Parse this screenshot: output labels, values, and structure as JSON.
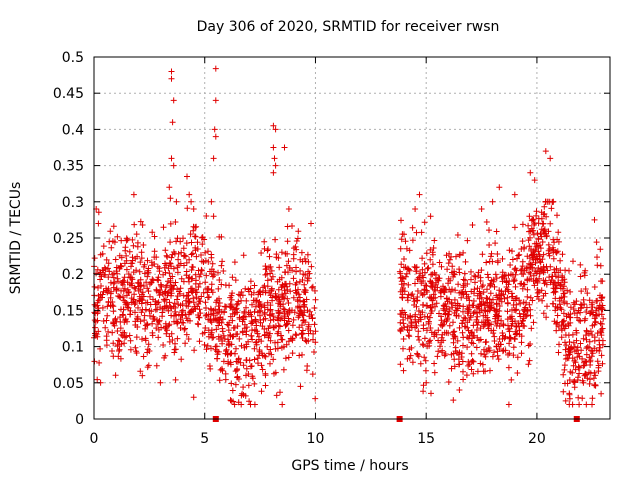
{
  "chart_data": {
    "type": "scatter",
    "title": "Day 306 of 2020, SRMTID for receiver rwsn",
    "xlabel": "GPS time / hours",
    "ylabel": "SRMTID / TECUs",
    "xlim": [
      0,
      23.3
    ],
    "ylim": [
      0,
      0.5
    ],
    "x_ticks": [
      0,
      5,
      10,
      15,
      20
    ],
    "x_tick_labels": [
      "0",
      "5",
      "10",
      "15",
      "20"
    ],
    "y_ticks": [
      0,
      0.05,
      0.1,
      0.15,
      0.2,
      0.25,
      0.3,
      0.35,
      0.4,
      0.45,
      0.5
    ],
    "y_tick_labels": [
      "0",
      "0.05",
      "0.1",
      "0.15",
      "0.2",
      "0.25",
      "0.3",
      "0.35",
      "0.4",
      "0.45",
      "0.5"
    ],
    "grid": true,
    "marker": "+",
    "color": "#e00000",
    "series": [
      {
        "name": "SRMTID",
        "segments": [
          {
            "x_start": 0.0,
            "x_end": 10.0,
            "count": 1200,
            "profile": [
              [
                0,
                0.17
              ],
              [
                2,
                0.17
              ],
              [
                3,
                0.15
              ],
              [
                4,
                0.19
              ],
              [
                5,
                0.18
              ],
              [
                5.5,
                0.15
              ],
              [
                6,
                0.11
              ],
              [
                7,
                0.12
              ],
              [
                8,
                0.15
              ],
              [
                9,
                0.18
              ],
              [
                10,
                0.13
              ]
            ]
          },
          {
            "x_start": 13.8,
            "x_end": 23.0,
            "count": 1200,
            "profile": [
              [
                13.8,
                0.17
              ],
              [
                15,
                0.15
              ],
              [
                16,
                0.15
              ],
              [
                17,
                0.14
              ],
              [
                18,
                0.16
              ],
              [
                19,
                0.15
              ],
              [
                20,
                0.22
              ],
              [
                20.5,
                0.24
              ],
              [
                21,
                0.18
              ],
              [
                21.5,
                0.1
              ],
              [
                22,
                0.11
              ],
              [
                23,
                0.13
              ]
            ]
          }
        ],
        "peaks": [
          {
            "x": 3.5,
            "y": 0.48
          },
          {
            "x": 3.5,
            "y": 0.47
          },
          {
            "x": 3.6,
            "y": 0.44
          },
          {
            "x": 3.55,
            "y": 0.41
          },
          {
            "x": 3.5,
            "y": 0.36
          },
          {
            "x": 3.6,
            "y": 0.35
          },
          {
            "x": 3.4,
            "y": 0.32
          },
          {
            "x": 3.45,
            "y": 0.305
          },
          {
            "x": 4.2,
            "y": 0.335
          },
          {
            "x": 4.3,
            "y": 0.31
          },
          {
            "x": 4.5,
            "y": 0.29
          },
          {
            "x": 5.3,
            "y": 0.3
          },
          {
            "x": 5.4,
            "y": 0.28
          },
          {
            "x": 5.5,
            "y": 0.484
          },
          {
            "x": 5.5,
            "y": 0.44
          },
          {
            "x": 5.45,
            "y": 0.4
          },
          {
            "x": 5.5,
            "y": 0.39
          },
          {
            "x": 5.4,
            "y": 0.36
          },
          {
            "x": 8.1,
            "y": 0.405
          },
          {
            "x": 8.2,
            "y": 0.4
          },
          {
            "x": 8.1,
            "y": 0.375
          },
          {
            "x": 8.15,
            "y": 0.36
          },
          {
            "x": 8.2,
            "y": 0.35
          },
          {
            "x": 8.1,
            "y": 0.34
          },
          {
            "x": 8.6,
            "y": 0.375
          },
          {
            "x": 0.1,
            "y": 0.29
          },
          {
            "x": 0.2,
            "y": 0.27
          },
          {
            "x": 1.8,
            "y": 0.31
          },
          {
            "x": 8.8,
            "y": 0.29
          },
          {
            "x": 9.8,
            "y": 0.27
          },
          {
            "x": 14.5,
            "y": 0.29
          },
          {
            "x": 14.7,
            "y": 0.31
          },
          {
            "x": 15.2,
            "y": 0.28
          },
          {
            "x": 17.5,
            "y": 0.29
          },
          {
            "x": 18.0,
            "y": 0.3
          },
          {
            "x": 18.3,
            "y": 0.32
          },
          {
            "x": 19.0,
            "y": 0.31
          },
          {
            "x": 19.7,
            "y": 0.34
          },
          {
            "x": 19.9,
            "y": 0.33
          },
          {
            "x": 20.4,
            "y": 0.37
          },
          {
            "x": 20.6,
            "y": 0.36
          },
          {
            "x": 20.5,
            "y": 0.3
          },
          {
            "x": 22.6,
            "y": 0.275
          },
          {
            "x": 4.5,
            "y": 0.03
          },
          {
            "x": 6.2,
            "y": 0.025
          },
          {
            "x": 8.5,
            "y": 0.02
          },
          {
            "x": 16.5,
            "y": 0.04
          },
          {
            "x": 21.3,
            "y": 0.025
          },
          {
            "x": 22.1,
            "y": 0.05
          },
          {
            "x": 22.9,
            "y": 0.035
          },
          {
            "x": 0.3,
            "y": 0.05
          },
          {
            "x": 3.0,
            "y": 0.05
          },
          {
            "x": 15.0,
            "y": 0.05
          }
        ],
        "zero_markers": [
          5.5,
          13.8,
          21.8
        ]
      }
    ]
  }
}
